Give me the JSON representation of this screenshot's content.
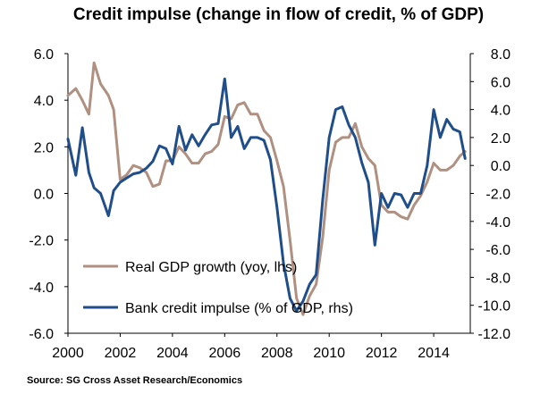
{
  "title": "Credit impulse (change in flow of credit, % of GDP)",
  "source": "Source: SG Cross Asset Research/Economics",
  "chart_data": {
    "type": "line",
    "title": "Credit impulse (change in flow of credit, % of GDP)",
    "xlabel": "",
    "ylabel_left": "",
    "ylabel_right": "",
    "xlim": [
      2000,
      2015.4
    ],
    "x_ticks": [
      "2000",
      "2002",
      "2004",
      "2006",
      "2008",
      "2010",
      "2012",
      "2014"
    ],
    "y_left": {
      "lim": [
        -6,
        6
      ],
      "ticks": [
        "6.0",
        "4.0",
        "2.0",
        "0.0",
        "-2.0",
        "-4.0",
        "-6.0"
      ]
    },
    "y_right": {
      "lim": [
        -12,
        8
      ],
      "ticks": [
        "8.0",
        "6.0",
        "4.0",
        "2.0",
        "0.0",
        "-2.0",
        "-4.0",
        "-6.0",
        "-8.0",
        "-10.0",
        "-12.0"
      ]
    },
    "grid": false,
    "legend_position": "bottom-left",
    "series": [
      {
        "name": "Real GDP growth (yoy, lhs)",
        "axis": "left",
        "color": "#b09080",
        "x": [
          2000.0,
          2000.3,
          2000.55,
          2000.8,
          2001.0,
          2001.25,
          2001.55,
          2001.75,
          2002.0,
          2002.25,
          2002.5,
          2002.75,
          2003.0,
          2003.25,
          2003.5,
          2003.75,
          2004.0,
          2004.25,
          2004.5,
          2004.75,
          2005.0,
          2005.25,
          2005.5,
          2005.75,
          2006.0,
          2006.25,
          2006.5,
          2006.75,
          2007.0,
          2007.25,
          2007.5,
          2007.75,
          2008.0,
          2008.25,
          2008.5,
          2008.75,
          2009.0,
          2009.25,
          2009.5,
          2009.75,
          2010.0,
          2010.25,
          2010.5,
          2010.75,
          2011.0,
          2011.25,
          2011.5,
          2011.75,
          2012.0,
          2012.25,
          2012.5,
          2012.75,
          2013.0,
          2013.25,
          2013.5,
          2013.75,
          2014.0,
          2014.25,
          2014.5,
          2014.75,
          2015.0,
          2015.2
        ],
        "y": [
          4.2,
          4.5,
          4.0,
          3.4,
          5.6,
          4.7,
          4.2,
          3.6,
          0.6,
          0.8,
          1.2,
          1.1,
          0.9,
          0.3,
          0.4,
          1.4,
          1.4,
          2.0,
          1.7,
          1.3,
          1.3,
          1.7,
          1.8,
          2.1,
          3.3,
          3.2,
          3.8,
          3.9,
          3.4,
          3.4,
          2.7,
          2.4,
          1.4,
          0.3,
          -2.0,
          -4.5,
          -5.2,
          -4.4,
          -3.9,
          -1.9,
          1.0,
          2.2,
          2.4,
          2.4,
          3.0,
          2.0,
          1.5,
          1.2,
          -0.5,
          -0.8,
          -0.8,
          -1.0,
          -1.1,
          -0.5,
          -0.1,
          0.5,
          1.3,
          1.0,
          1.0,
          1.2,
          1.6,
          1.8
        ]
      },
      {
        "name": "Bank credit impulse (% of GDP, rhs)",
        "axis": "right",
        "color": "#1f4e8a",
        "x": [
          2000.0,
          2000.3,
          2000.55,
          2000.8,
          2001.0,
          2001.25,
          2001.55,
          2001.75,
          2002.0,
          2002.25,
          2002.5,
          2002.75,
          2003.0,
          2003.25,
          2003.5,
          2003.75,
          2004.0,
          2004.25,
          2004.5,
          2004.75,
          2005.0,
          2005.25,
          2005.5,
          2005.75,
          2006.0,
          2006.25,
          2006.5,
          2006.75,
          2007.0,
          2007.25,
          2007.5,
          2007.75,
          2008.0,
          2008.25,
          2008.5,
          2008.75,
          2009.0,
          2009.25,
          2009.5,
          2009.75,
          2010.0,
          2010.25,
          2010.5,
          2010.75,
          2011.0,
          2011.25,
          2011.5,
          2011.75,
          2012.0,
          2012.25,
          2012.5,
          2012.75,
          2013.0,
          2013.25,
          2013.5,
          2013.75,
          2014.0,
          2014.25,
          2014.5,
          2014.75,
          2015.0,
          2015.2
        ],
        "y": [
          1.9,
          -0.7,
          2.7,
          -0.5,
          -1.6,
          -2.0,
          -3.6,
          -1.8,
          -1.2,
          -0.9,
          -0.6,
          -0.5,
          -0.2,
          0.3,
          1.4,
          1.2,
          0.1,
          2.8,
          1.1,
          2.2,
          1.4,
          2.2,
          2.9,
          3.0,
          6.2,
          2.0,
          2.8,
          1.2,
          2.0,
          2.0,
          1.8,
          0.4,
          -3.0,
          -7.0,
          -9.5,
          -10.4,
          -9.7,
          -8.5,
          -7.8,
          -2.5,
          2.0,
          4.0,
          4.2,
          2.9,
          2.0,
          0.2,
          -1.2,
          -5.7,
          -2.0,
          -3.0,
          -2.0,
          -2.1,
          -3.0,
          -2.0,
          -2.0,
          0.0,
          4.0,
          2.0,
          3.3,
          2.6,
          2.4,
          0.5
        ]
      }
    ]
  }
}
